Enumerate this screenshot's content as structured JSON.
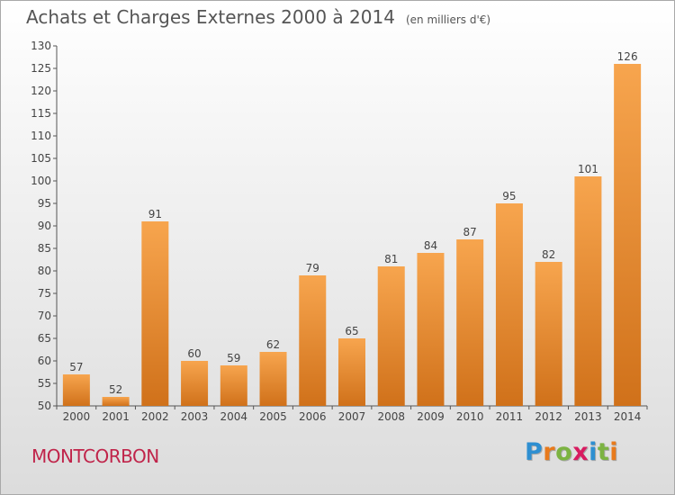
{
  "header": {
    "title": "Achats et Charges Externes 2000 à 2014",
    "subtitle": "(en milliers d'€)"
  },
  "footer": {
    "place": "MONTCORBON",
    "logo": "Proxiti"
  },
  "colors": {
    "bar_light": "#f7a54e",
    "bar_dark": "#d0711a",
    "place": "#c0244a",
    "logo_letters": [
      "#2e8fd1",
      "#e87a1c",
      "#7cb342",
      "#d81b60",
      "#2e8fd1",
      "#7cb342",
      "#e87a1c"
    ]
  },
  "chart_data": {
    "type": "bar",
    "title": "Achats et Charges Externes 2000 à 2014",
    "subtitle": "(en milliers d'€)",
    "xlabel": "",
    "ylabel": "",
    "categories": [
      "2000",
      "2001",
      "2002",
      "2003",
      "2004",
      "2005",
      "2006",
      "2007",
      "2008",
      "2009",
      "2010",
      "2011",
      "2012",
      "2013",
      "2014"
    ],
    "values": [
      57,
      52,
      91,
      60,
      59,
      62,
      79,
      65,
      81,
      84,
      87,
      95,
      82,
      101,
      126
    ],
    "ylim": [
      50,
      130
    ],
    "yticks": [
      50,
      55,
      60,
      65,
      70,
      75,
      80,
      85,
      90,
      95,
      100,
      105,
      110,
      115,
      120,
      125,
      130
    ],
    "grid": false,
    "legend": "none",
    "data_labels": true
  }
}
